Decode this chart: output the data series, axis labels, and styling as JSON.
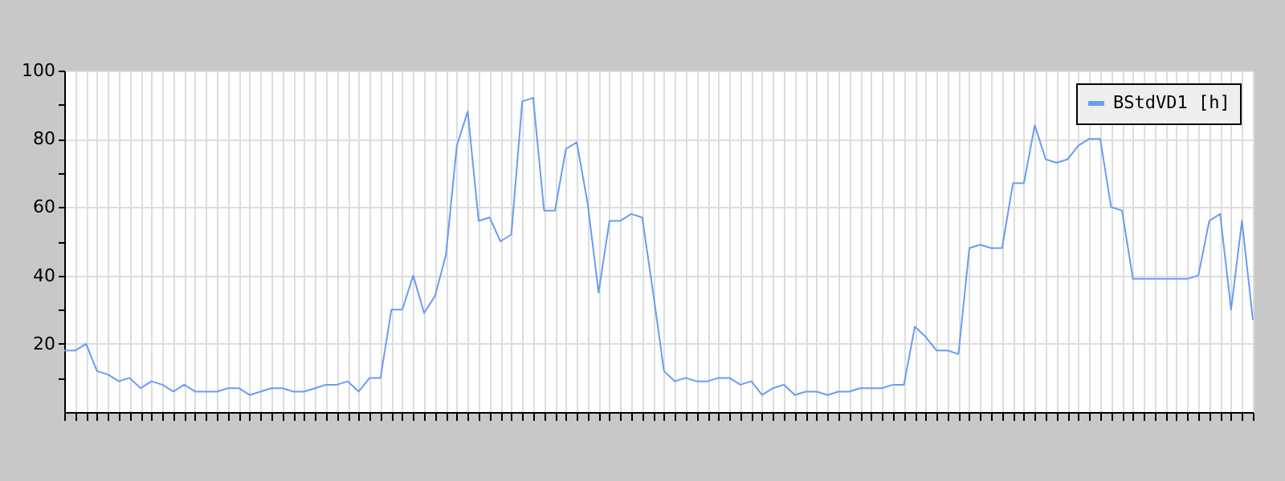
{
  "chart_data": {
    "type": "line",
    "categories": [
      null,
      null,
      null,
      null,
      null,
      null,
      null,
      null,
      null,
      null,
      null,
      null,
      null,
      null,
      null,
      null,
      null,
      null,
      null,
      null,
      null,
      null,
      null,
      null,
      null,
      null,
      null,
      null,
      null,
      null,
      null,
      null,
      null,
      null,
      null,
      null,
      null,
      null,
      null,
      null,
      null,
      null,
      null,
      null,
      null,
      null,
      null,
      null,
      null,
      null,
      null,
      null,
      null,
      null,
      null,
      null,
      null,
      null,
      null,
      null,
      null,
      null,
      null,
      null,
      null,
      null,
      null,
      null,
      null,
      null,
      null,
      null,
      null,
      null,
      null,
      null,
      null,
      null,
      null,
      null,
      null,
      null,
      null,
      null,
      null,
      null,
      null,
      null,
      null,
      null,
      null,
      null,
      null,
      null,
      null,
      null,
      null,
      null,
      null,
      null,
      null,
      null,
      null,
      null,
      null,
      null,
      null,
      null,
      null,
      null
    ],
    "series": [
      {
        "name": "BStdVD1 [h]",
        "color": "#6a9cf5",
        "values": [
          18,
          18,
          20,
          12,
          11,
          9,
          10,
          7,
          9,
          8,
          6,
          8,
          6,
          6,
          6,
          7,
          7,
          5,
          6,
          7,
          7,
          6,
          6,
          7,
          8,
          8,
          9,
          6,
          10,
          10,
          30,
          30,
          40,
          29,
          34,
          46,
          78,
          88,
          56,
          57,
          50,
          52,
          91,
          92,
          59,
          59,
          77,
          79,
          61,
          35,
          56,
          56,
          58,
          57,
          35,
          12,
          9,
          10,
          9,
          9,
          10,
          10,
          8,
          9,
          5,
          7,
          8,
          5,
          6,
          6,
          5,
          6,
          6,
          7,
          7,
          7,
          8,
          8,
          25,
          22,
          18,
          18,
          17,
          48,
          49,
          48,
          48,
          67,
          67,
          84,
          74,
          73,
          74,
          78,
          80,
          80,
          60,
          59,
          39,
          39,
          39,
          39,
          39,
          39,
          40,
          56,
          58,
          30,
          56,
          27
        ]
      }
    ],
    "ylim": [
      0,
      100
    ],
    "yticks": [
      {
        "value": 10,
        "label": null
      },
      20,
      {
        "value": 30,
        "label": null
      },
      40,
      {
        "value": 50,
        "label": null
      },
      60,
      {
        "value": 70,
        "label": null
      },
      80,
      {
        "value": 90,
        "label": null
      },
      100
    ],
    "grid": true,
    "legend": "top right",
    "tick_labels": "y",
    "marker": "none",
    "line_style": "solid"
  }
}
